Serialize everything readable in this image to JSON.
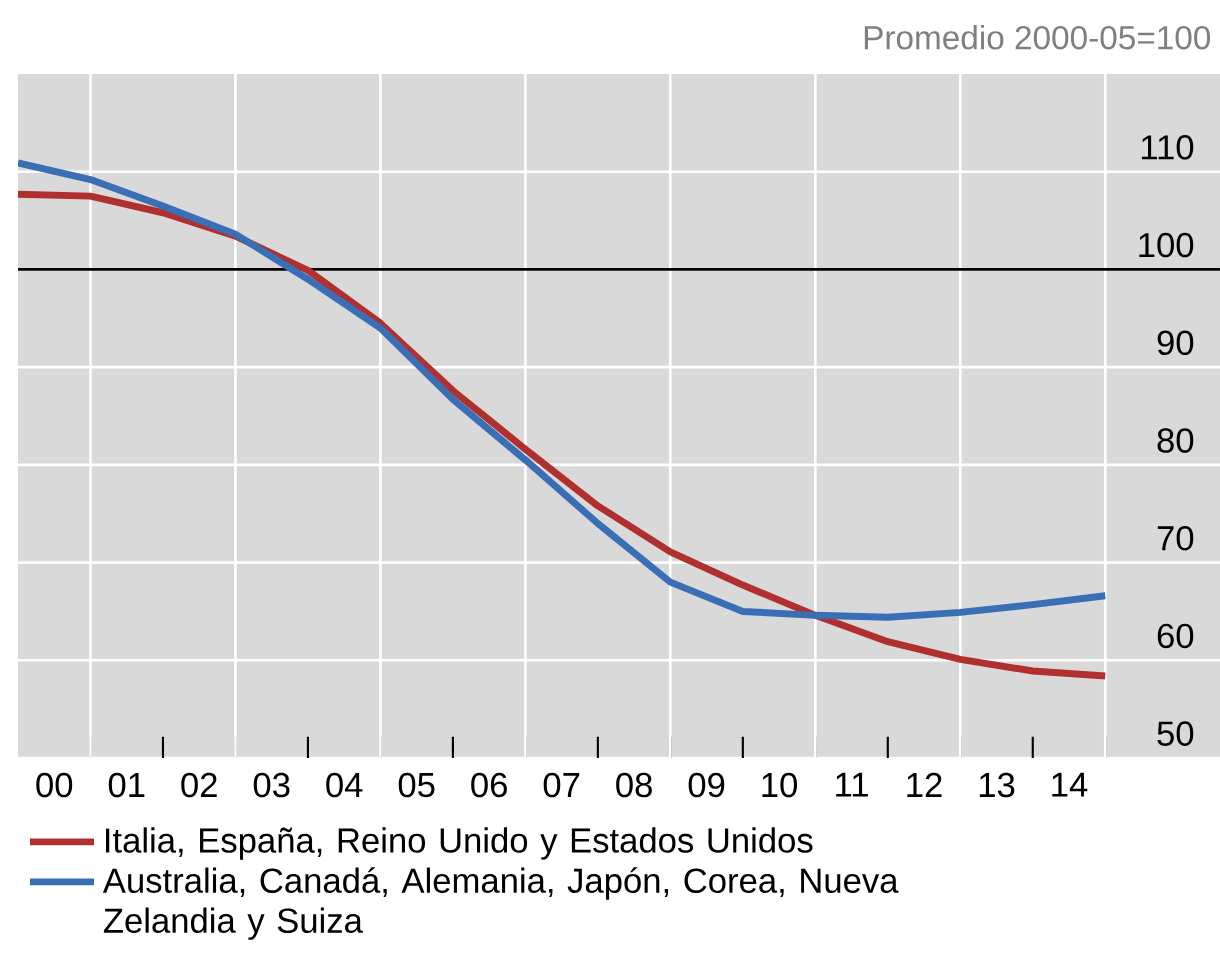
{
  "chart_data": {
    "type": "line",
    "subtitle": "Promedio 2000-05=100",
    "x": [
      "2000-01",
      "2001-01",
      "2002-01",
      "2003-01",
      "2004-01",
      "2005-01",
      "2006-01",
      "2007-01",
      "2008-01",
      "2009-01",
      "2010-01",
      "2011-01",
      "2012-01",
      "2013-01",
      "2014-01",
      "2015-01"
    ],
    "series": [
      {
        "name": "Italia, España, Reino Unido y Estados Unidos",
        "color": "#b03030",
        "values": [
          107.7,
          107.5,
          105.8,
          103.4,
          99.9,
          94.5,
          87.6,
          81.6,
          75.8,
          71.1,
          67.7,
          64.6,
          61.9,
          60.1,
          58.9,
          58.4
        ]
      },
      {
        "name": "Australia, Canadá, Alemania, Japón, Corea, Nueva Zelandia y Suiza",
        "color": "#3a6eb5",
        "values": [
          110.9,
          109.2,
          106.5,
          103.6,
          99.0,
          94.0,
          86.7,
          80.5,
          74.0,
          68.0,
          65.0,
          64.6,
          64.4,
          64.9,
          65.7,
          66.6
        ]
      }
    ],
    "xlim": [
      "2000-01",
      "2016-08"
    ],
    "ylim": [
      50,
      120
    ],
    "xticks": [
      {
        "value": "2000-07",
        "label": "00"
      },
      {
        "value": "2001-07",
        "label": "01"
      },
      {
        "value": "2002-07",
        "label": "02"
      },
      {
        "value": "2003-07",
        "label": "03"
      },
      {
        "value": "2004-07",
        "label": "04"
      },
      {
        "value": "2005-07",
        "label": "05"
      },
      {
        "value": "2006-07",
        "label": "06"
      },
      {
        "value": "2007-07",
        "label": "07"
      },
      {
        "value": "2008-07",
        "label": "08"
      },
      {
        "value": "2009-07",
        "label": "09"
      },
      {
        "value": "2010-07",
        "label": "10"
      },
      {
        "value": "2011-07",
        "label": "11"
      },
      {
        "value": "2012-07",
        "label": "12"
      },
      {
        "value": "2013-07",
        "label": "13"
      },
      {
        "value": "2014-07",
        "label": "14"
      },
      {
        "value": "2001-01",
        "label": null
      },
      {
        "value": "2002-01",
        "label": null
      },
      {
        "value": "2003-01",
        "label": null
      },
      {
        "value": "2004-01",
        "label": null
      },
      {
        "value": "2005-01",
        "label": null
      },
      {
        "value": "2006-01",
        "label": null
      },
      {
        "value": "2007-01",
        "label": null
      },
      {
        "value": "2008-01",
        "label": null
      },
      {
        "value": "2009-01",
        "label": null
      },
      {
        "value": "2010-01",
        "label": null
      },
      {
        "value": "2011-01",
        "label": null
      },
      {
        "value": "2012-01",
        "label": null
      },
      {
        "value": "2013-01",
        "label": null
      },
      {
        "value": "2014-01",
        "label": null
      },
      {
        "value": "2015-01",
        "label": null
      }
    ],
    "yticks": [
      50,
      60,
      70,
      80,
      90,
      100,
      110
    ],
    "ref_lines": [
      {
        "axis": "y",
        "value": 100,
        "color": "#000000"
      }
    ],
    "grid": true,
    "legend": "bottom",
    "marker": "none",
    "line_style": "solid"
  }
}
